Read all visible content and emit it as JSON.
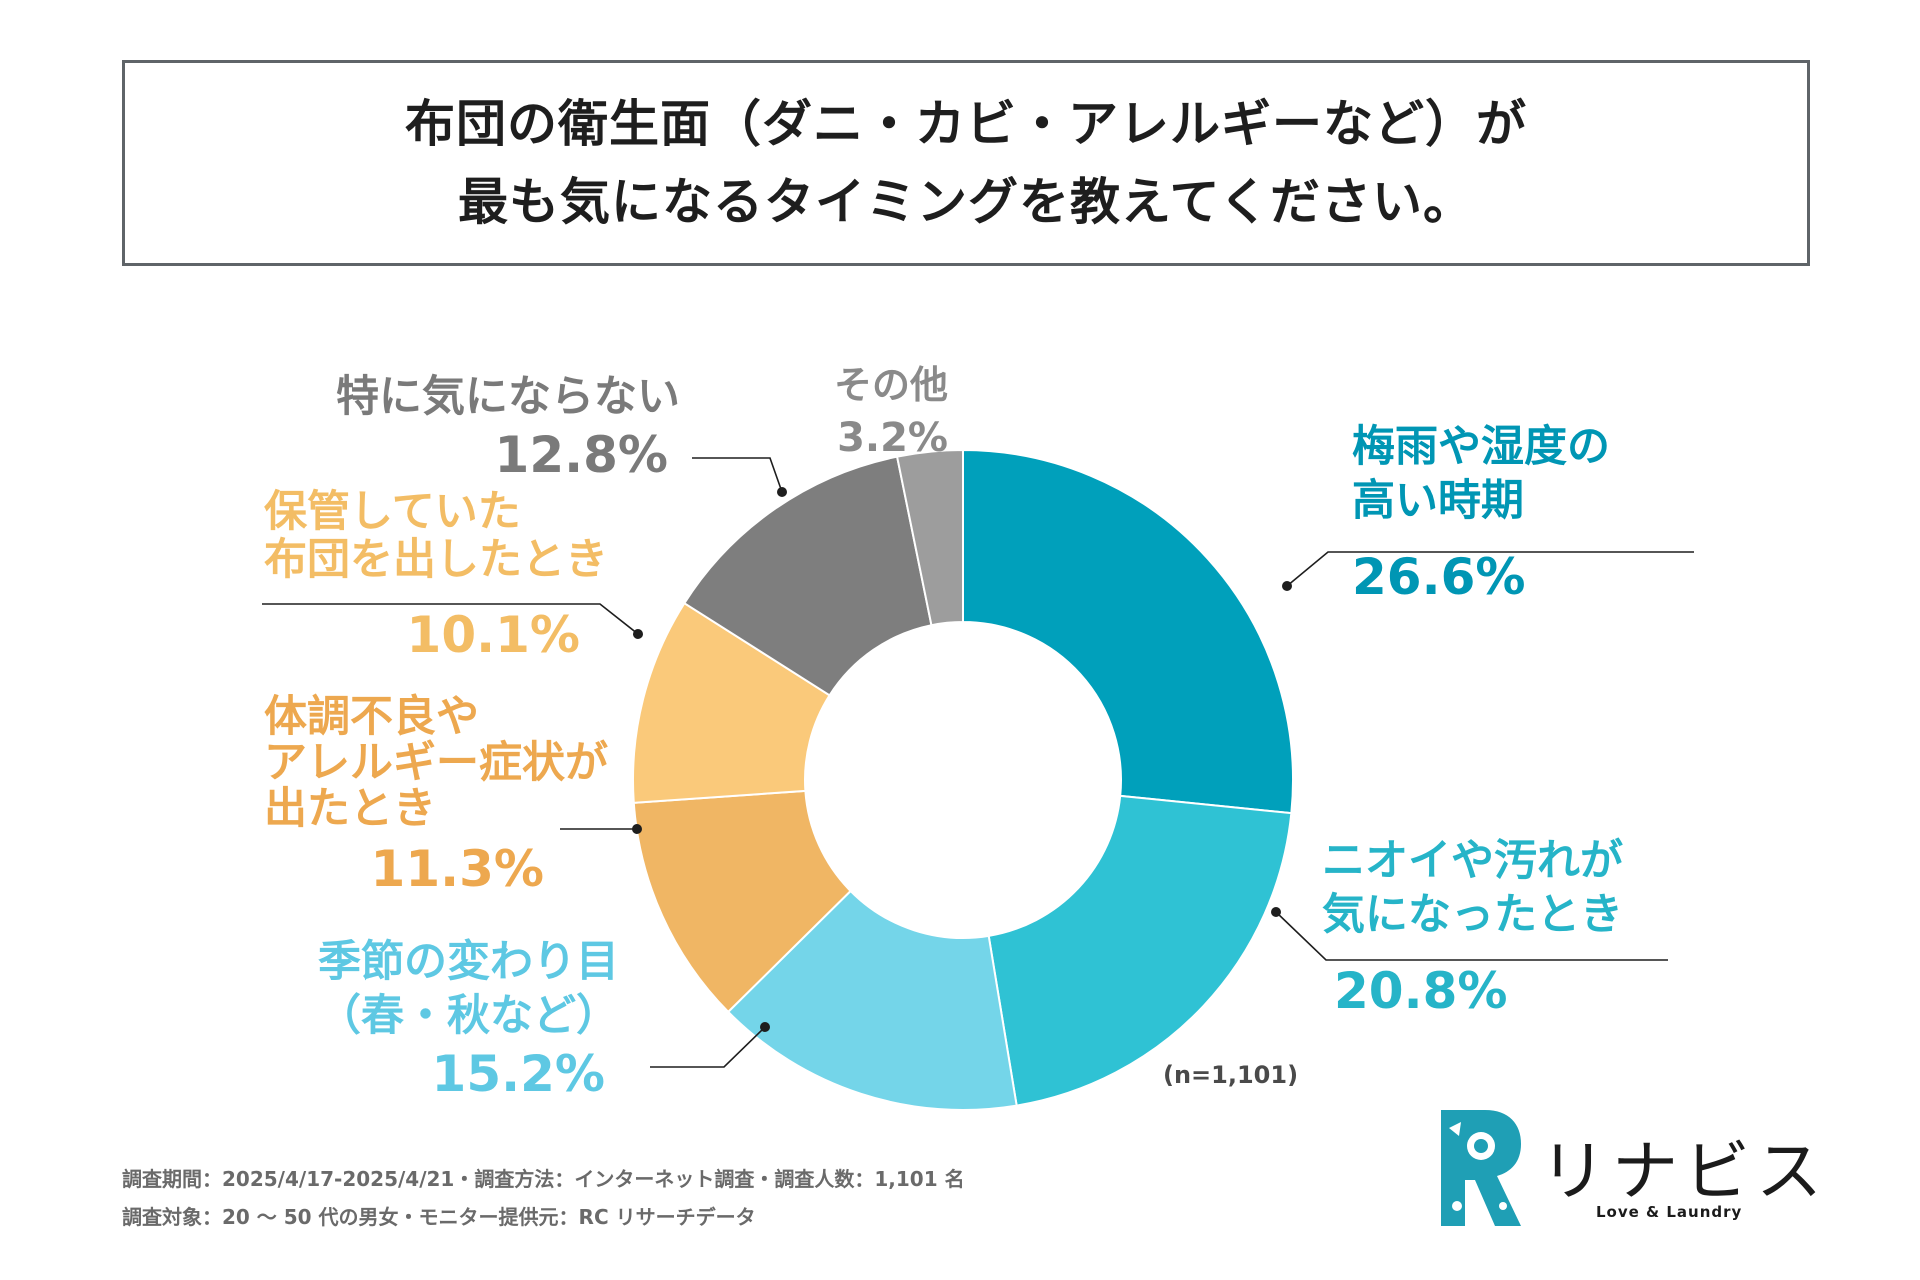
{
  "title": {
    "line1": "布団の衛生面（ダニ・カビ・アレルギーなど）が",
    "line2": "最も気になるタイミングを教えてください。"
  },
  "chart_data": {
    "type": "pie",
    "variant": "donut",
    "title": "布団の衛生面（ダニ・カビ・アレルギーなど）が最も気になるタイミングを教えてください。",
    "unit": "%",
    "sample_size": "(n=1,101)",
    "slices": [
      {
        "id": "humid",
        "label_lines": [
          "梅雨や湿度の",
          "高い時期"
        ],
        "value": 26.6,
        "value_label": "26.6%",
        "color": "#00a0bb",
        "text_color": "#0096b4"
      },
      {
        "id": "odor",
        "label_lines": [
          "ニオイや汚れが",
          "気になったとき"
        ],
        "value": 20.8,
        "value_label": "20.8%",
        "color": "#2fc2d4",
        "text_color": "#26b4c8"
      },
      {
        "id": "season",
        "label_lines": [
          "季節の変わり目",
          "（春・秋など）"
        ],
        "value": 15.2,
        "value_label": "15.2%",
        "color": "#74d5e9",
        "text_color": "#5ec8e3"
      },
      {
        "id": "health",
        "label_lines": [
          "体調不良や",
          "アレルギー症状が",
          "出たとき"
        ],
        "value": 11.3,
        "value_label": "11.3%",
        "color": "#f0b664",
        "text_color": "#eda84f"
      },
      {
        "id": "storage",
        "label_lines": [
          "保管していた",
          "布団を出したとき"
        ],
        "value": 10.1,
        "value_label": "10.1%",
        "color": "#fac97a",
        "text_color": "#f3bd65"
      },
      {
        "id": "none",
        "label_lines": [
          "特に気にならない"
        ],
        "value": 12.8,
        "value_label": "12.8%",
        "color": "#7e7e7e",
        "text_color": "#7a7a7a"
      },
      {
        "id": "other",
        "label_lines": [
          "その他"
        ],
        "value": 3.2,
        "value_label": "3.2%",
        "color": "#9d9d9d",
        "text_color": "#8a8a8a"
      }
    ]
  },
  "footer": {
    "line1": "調査期間：2025/4/17-2025/4/21・調査方法：インターネット調査・調査人数：1,101 名",
    "line2": "調査対象：20 〜 50 代の男女・モニター提供元：RC リサーチデータ"
  },
  "brand": {
    "name": "リナビス",
    "tagline": "Love & Laundry",
    "color": "#1f9fb5"
  }
}
